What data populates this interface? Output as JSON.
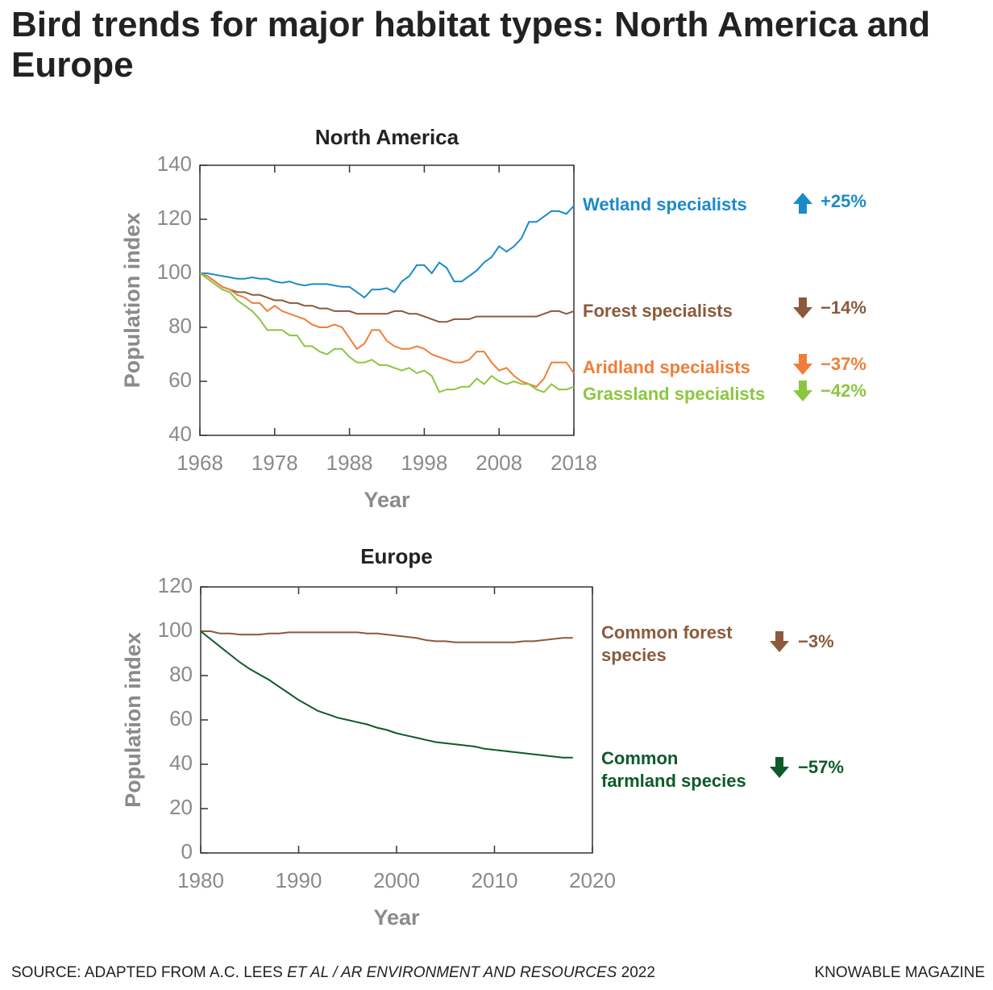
{
  "title": "Bird trends for major habitat types: North America and Europe",
  "source": {
    "prefix": "SOURCE: ADAPTED FROM A.C. LEES",
    "italic": "ET AL / AR ENVIRONMENT AND RESOURCES",
    "suffix": "2022"
  },
  "credit": "KNOWABLE MAGAZINE",
  "chart_data": [
    {
      "type": "line",
      "title": "North America",
      "xlabel": "Year",
      "ylabel": "Population index",
      "x": [
        1968,
        1969,
        1970,
        1971,
        1972,
        1973,
        1974,
        1975,
        1976,
        1977,
        1978,
        1979,
        1980,
        1981,
        1982,
        1983,
        1984,
        1985,
        1986,
        1987,
        1988,
        1989,
        1990,
        1991,
        1992,
        1993,
        1994,
        1995,
        1996,
        1997,
        1998,
        1999,
        2000,
        2001,
        2002,
        2003,
        2004,
        2005,
        2006,
        2007,
        2008,
        2009,
        2010,
        2011,
        2012,
        2013,
        2014,
        2015,
        2016,
        2017,
        2018
      ],
      "xlim": [
        1968,
        2018
      ],
      "xticks": [
        1968,
        1978,
        1988,
        1998,
        2008,
        2018
      ],
      "ylim": [
        40,
        140
      ],
      "yticks": [
        40,
        60,
        80,
        100,
        120,
        140
      ],
      "series": [
        {
          "name": "Wetland specialists",
          "color": "#1b8bc8",
          "change": "+25%",
          "values": [
            100,
            100,
            99.5,
            99,
            98.5,
            98,
            98,
            98.5,
            98,
            98,
            97,
            96.5,
            97,
            96,
            95.5,
            96,
            96,
            96,
            95.5,
            95,
            95,
            93,
            91,
            94,
            94,
            94.5,
            93,
            97,
            99,
            103,
            103,
            100,
            104,
            102,
            97,
            97,
            99,
            101,
            104,
            106,
            110,
            108,
            110,
            113,
            119,
            119,
            121,
            123,
            123,
            122,
            125
          ]
        },
        {
          "name": "Forest specialists",
          "color": "#8b5a3c",
          "change": "−14%",
          "values": [
            100,
            99,
            97,
            95,
            94,
            93,
            93,
            92,
            92,
            91,
            90,
            90,
            89,
            89,
            88,
            88,
            87,
            87,
            86,
            86,
            86,
            85,
            85,
            85,
            85,
            85,
            86,
            86,
            85,
            85,
            84,
            83,
            82,
            82,
            83,
            83,
            83,
            84,
            84,
            84,
            84,
            84,
            84,
            84,
            84,
            84,
            85,
            86,
            86,
            85,
            86
          ]
        },
        {
          "name": "Aridland specialists",
          "color": "#f07e3a",
          "change": "−37%",
          "values": [
            100,
            99,
            97,
            95,
            94,
            92,
            91,
            89,
            89,
            86,
            88,
            86,
            85,
            84,
            83,
            81,
            80,
            80,
            81,
            80,
            76,
            72,
            74,
            79,
            79,
            75,
            73,
            72,
            72,
            73,
            72,
            70,
            69,
            68,
            67,
            67,
            68,
            71,
            71,
            67,
            64,
            65,
            62,
            60,
            59,
            58,
            61,
            67,
            67,
            67,
            63
          ]
        },
        {
          "name": "Grassland specialists",
          "color": "#8cc63f",
          "change": "−42%",
          "values": [
            100,
            98,
            96,
            94,
            93,
            90,
            88,
            86,
            83,
            79,
            79,
            79,
            77,
            77,
            73,
            73,
            71,
            70,
            72,
            72,
            69,
            67,
            67,
            68,
            66,
            66,
            65,
            64,
            65,
            63,
            64,
            62,
            56,
            57,
            57,
            58,
            58,
            61,
            59,
            62,
            60,
            59,
            60,
            59,
            59,
            57,
            56,
            59,
            57,
            57,
            58
          ]
        }
      ]
    },
    {
      "type": "line",
      "title": "Europe",
      "xlabel": "Year",
      "ylabel": "Population index",
      "x": [
        1980,
        1981,
        1982,
        1983,
        1984,
        1985,
        1986,
        1987,
        1988,
        1989,
        1990,
        1991,
        1992,
        1993,
        1994,
        1995,
        1996,
        1997,
        1998,
        1999,
        2000,
        2001,
        2002,
        2003,
        2004,
        2005,
        2006,
        2007,
        2008,
        2009,
        2010,
        2011,
        2012,
        2013,
        2014,
        2015,
        2016,
        2017,
        2018
      ],
      "xlim": [
        1980,
        2020
      ],
      "xticks": [
        1980,
        1990,
        2000,
        2010,
        2020
      ],
      "ylim": [
        0,
        120
      ],
      "yticks": [
        0,
        20,
        40,
        60,
        80,
        100,
        120
      ],
      "series": [
        {
          "name": "Common forest species",
          "color": "#8b5a3c",
          "change": "−3%",
          "values": [
            100,
            100,
            99,
            99,
            98.5,
            98.5,
            98.5,
            99,
            99,
            99.5,
            99.5,
            99.5,
            99.5,
            99.5,
            99.5,
            99.5,
            99.5,
            99,
            99,
            98.5,
            98,
            97.5,
            97,
            96,
            95.5,
            95.5,
            95,
            95,
            95,
            95,
            95,
            95,
            95,
            95.5,
            95.5,
            96,
            96.5,
            97,
            97
          ]
        },
        {
          "name": "Common farmland species",
          "color": "#0e5a2a",
          "change": "−57%",
          "values": [
            100,
            96.5,
            93,
            89.5,
            86,
            83,
            80.5,
            78,
            75,
            72,
            69,
            66.5,
            64,
            62.5,
            61,
            60,
            59,
            58,
            56.5,
            55.5,
            54,
            53,
            52,
            51,
            50,
            49.5,
            49,
            48.5,
            48,
            47,
            46.5,
            46,
            45.5,
            45,
            44.5,
            44,
            43.5,
            43,
            43
          ]
        }
      ]
    }
  ]
}
